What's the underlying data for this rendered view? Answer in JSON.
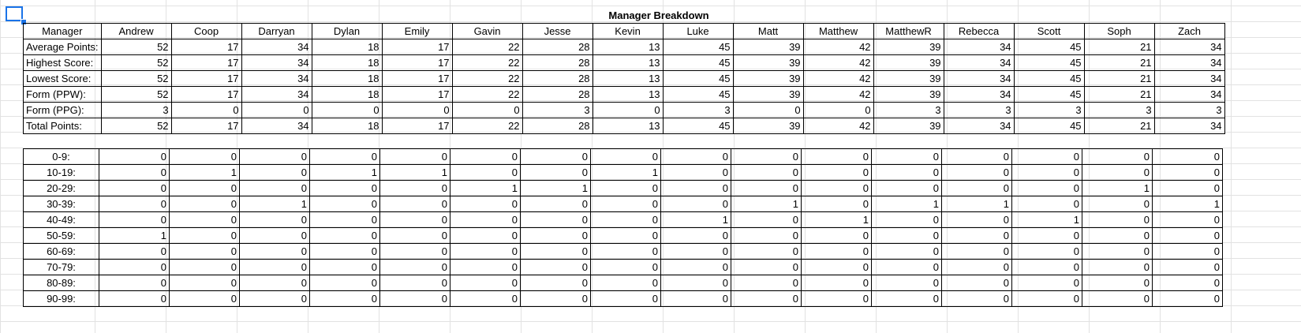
{
  "sheet_title": "Manager Breakdown",
  "header_label": "Manager",
  "managers": [
    "Andrew",
    "Coop",
    "Darryan",
    "Dylan",
    "Emily",
    "Gavin",
    "Jesse",
    "Kevin",
    "Luke",
    "Matt",
    "Matthew",
    "MatthewR",
    "Rebecca",
    "Scott",
    "Soph",
    "Zach"
  ],
  "stats": [
    {
      "label": "Average Points:",
      "values": [
        52,
        17,
        34,
        18,
        17,
        22,
        28,
        13,
        45,
        39,
        42,
        39,
        34,
        45,
        21,
        34
      ]
    },
    {
      "label": "Highest Score:",
      "values": [
        52,
        17,
        34,
        18,
        17,
        22,
        28,
        13,
        45,
        39,
        42,
        39,
        34,
        45,
        21,
        34
      ]
    },
    {
      "label": "Lowest Score:",
      "values": [
        52,
        17,
        34,
        18,
        17,
        22,
        28,
        13,
        45,
        39,
        42,
        39,
        34,
        45,
        21,
        34
      ]
    },
    {
      "label": "Form (PPW):",
      "values": [
        52,
        17,
        34,
        18,
        17,
        22,
        28,
        13,
        45,
        39,
        42,
        39,
        34,
        45,
        21,
        34
      ]
    },
    {
      "label": "Form (PPG):",
      "values": [
        3,
        0,
        0,
        0,
        0,
        0,
        3,
        0,
        3,
        0,
        0,
        3,
        3,
        3,
        3,
        3
      ]
    },
    {
      "label": "Total Points:",
      "values": [
        52,
        17,
        34,
        18,
        17,
        22,
        28,
        13,
        45,
        39,
        42,
        39,
        34,
        45,
        21,
        34
      ]
    }
  ],
  "buckets": [
    {
      "label": "0-9:",
      "values": [
        0,
        0,
        0,
        0,
        0,
        0,
        0,
        0,
        0,
        0,
        0,
        0,
        0,
        0,
        0,
        0
      ]
    },
    {
      "label": "10-19:",
      "values": [
        0,
        1,
        0,
        1,
        1,
        0,
        0,
        1,
        0,
        0,
        0,
        0,
        0,
        0,
        0,
        0
      ]
    },
    {
      "label": "20-29:",
      "values": [
        0,
        0,
        0,
        0,
        0,
        1,
        1,
        0,
        0,
        0,
        0,
        0,
        0,
        0,
        1,
        0
      ]
    },
    {
      "label": "30-39:",
      "values": [
        0,
        0,
        1,
        0,
        0,
        0,
        0,
        0,
        0,
        1,
        0,
        1,
        1,
        0,
        0,
        1
      ]
    },
    {
      "label": "40-49:",
      "values": [
        0,
        0,
        0,
        0,
        0,
        0,
        0,
        0,
        1,
        0,
        1,
        0,
        0,
        1,
        0,
        0
      ]
    },
    {
      "label": "50-59:",
      "values": [
        1,
        0,
        0,
        0,
        0,
        0,
        0,
        0,
        0,
        0,
        0,
        0,
        0,
        0,
        0,
        0
      ]
    },
    {
      "label": "60-69:",
      "values": [
        0,
        0,
        0,
        0,
        0,
        0,
        0,
        0,
        0,
        0,
        0,
        0,
        0,
        0,
        0,
        0
      ]
    },
    {
      "label": "70-79:",
      "values": [
        0,
        0,
        0,
        0,
        0,
        0,
        0,
        0,
        0,
        0,
        0,
        0,
        0,
        0,
        0,
        0
      ]
    },
    {
      "label": "80-89:",
      "values": [
        0,
        0,
        0,
        0,
        0,
        0,
        0,
        0,
        0,
        0,
        0,
        0,
        0,
        0,
        0,
        0
      ]
    },
    {
      "label": "90-99:",
      "values": [
        0,
        0,
        0,
        0,
        0,
        0,
        0,
        0,
        0,
        0,
        0,
        0,
        0,
        0,
        0,
        0
      ]
    }
  ]
}
